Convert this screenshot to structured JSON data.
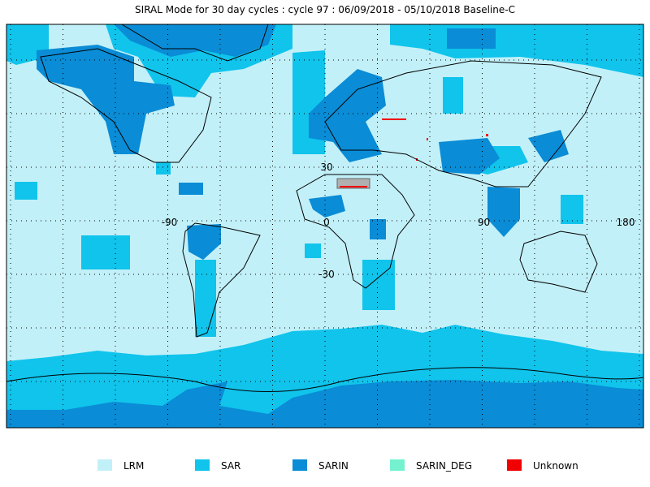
{
  "title": "SIRAL Mode for 30 day cycles : cycle 97 : 06/09/2018 - 05/10/2018 Baseline-C",
  "longitude_labels": [
    -90,
    0,
    90,
    180
  ],
  "latitude_labels": [
    30,
    -30
  ],
  "legend": [
    {
      "label": "LRM",
      "color": "#c2f0f8"
    },
    {
      "label": "SAR",
      "color": "#10c4ec"
    },
    {
      "label": "SARIN",
      "color": "#0a8cd6"
    },
    {
      "label": "SARIN_DEG",
      "color": "#74f2d0"
    },
    {
      "label": "Unknown",
      "color": "#f00000"
    }
  ]
}
